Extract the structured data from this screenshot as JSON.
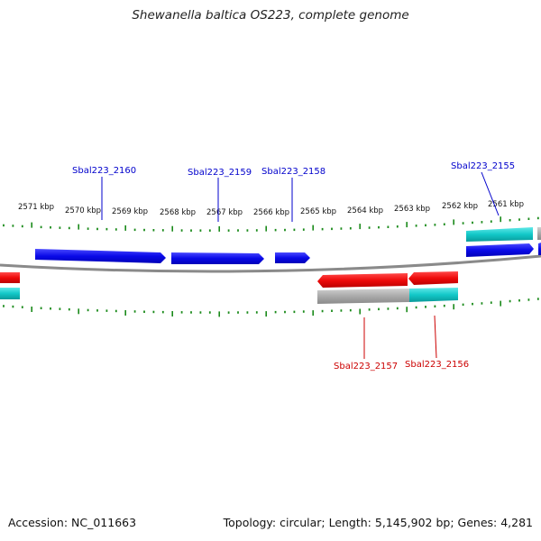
{
  "title": "Shewanella baltica OS223, complete genome",
  "footer": {
    "accession": "Accession: NC_011663",
    "summary": "Topology: circular; Length: 5,145,902 bp; Genes: 4,281"
  },
  "scale_labels": [
    "2571 kbp",
    "2570 kbp",
    "2569 kbp",
    "2568 kbp",
    "2567 kbp",
    "2566 kbp",
    "2565 kbp",
    "2564 kbp",
    "2563 kbp",
    "2562 kbp",
    "2561 kbp"
  ],
  "genes": {
    "sbal2160": "Sbal223_2160",
    "sbal2159": "Sbal223_2159",
    "sbal2158": "Sbal223_2158",
    "sbal2155": "Sbal223_2155",
    "sbal2157": "Sbal223_2157",
    "sbal2156": "Sbal223_2156"
  },
  "colors": {
    "forward_strand": "#1010e0",
    "reverse_strand": "#e01010",
    "rna_feature": "#10c8c8",
    "pseudo_feature": "#a8a8a8",
    "forward_label": "#0000cc",
    "reverse_label": "#cc0000",
    "tick": "#1a8a1a",
    "backbone": "#808080"
  }
}
